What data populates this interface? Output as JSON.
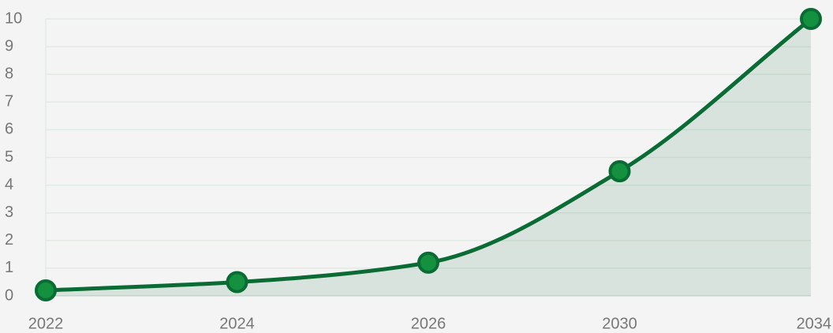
{
  "chart_data": {
    "type": "area",
    "title": "",
    "xlabel": "",
    "ylabel": "",
    "categories": [
      "2022",
      "2024",
      "2026",
      "2030",
      "2034"
    ],
    "series": [
      {
        "values": [
          0.2,
          0.5,
          1.2,
          4.5,
          10
        ]
      }
    ],
    "ylim": [
      0,
      10
    ],
    "yticks": [
      0,
      1,
      2,
      3,
      4,
      5,
      6,
      7,
      8,
      9,
      10
    ],
    "grid": true,
    "legend": "none",
    "colors": {
      "line": "#0b6b34",
      "marker_fill": "#14913f",
      "area_fill": "#0b6b34",
      "grid": "#e2eae4",
      "tick_text": "#777777",
      "background": "#f4f4f4"
    }
  }
}
